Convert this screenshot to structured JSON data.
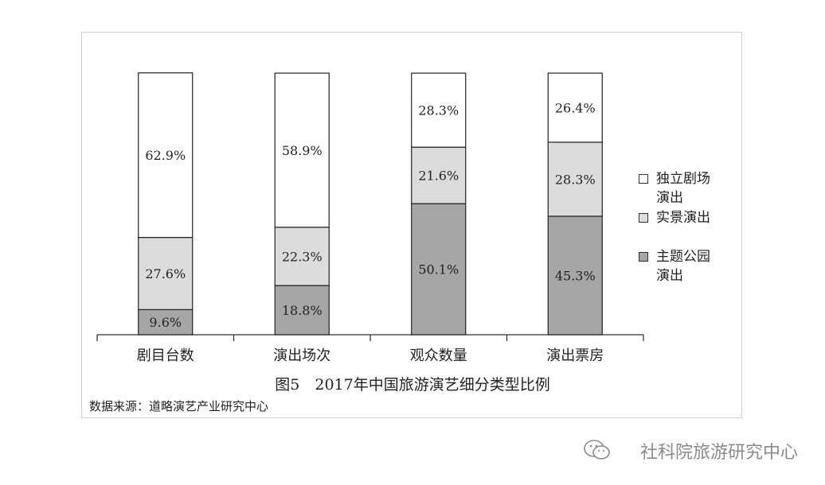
{
  "chart_data": {
    "type": "bar",
    "stacked": true,
    "categories": [
      "剧目台数",
      "演出场次",
      "观众数量",
      "演出票房"
    ],
    "series": [
      {
        "name": "主题公园演出",
        "color": "#a6a6a6",
        "values": [
          9.6,
          18.8,
          50.1,
          45.3
        ],
        "labels": [
          "9.6%",
          "18.8%",
          "50.1%",
          "45.3%"
        ]
      },
      {
        "name": "实景演出",
        "color": "#dcdcdc",
        "values": [
          27.6,
          22.3,
          21.6,
          28.3
        ],
        "labels": [
          "27.6%",
          "22.3%",
          "21.6%",
          "28.3%"
        ]
      },
      {
        "name": "独立剧场演出",
        "color": "#ffffff",
        "values": [
          62.9,
          58.9,
          28.3,
          26.4
        ],
        "labels": [
          "62.9%",
          "58.9%",
          "28.3%",
          "26.4%"
        ]
      }
    ],
    "ylim": [
      0,
      100
    ],
    "grid": false,
    "legend_position": "right"
  },
  "legend": [
    {
      "line1": "独立剧场",
      "line2": "演出",
      "color": "#ffffff"
    },
    {
      "line1": "实景演出",
      "line2": "",
      "color": "#dcdcdc"
    },
    {
      "line1": "主题公园",
      "line2": "演出",
      "color": "#a6a6a6"
    }
  ],
  "caption": "图5　2017年中国旅游演艺细分类型比例",
  "source": "数据来源：道略演艺产业研究中心",
  "watermark": "社科院旅游研究中心"
}
